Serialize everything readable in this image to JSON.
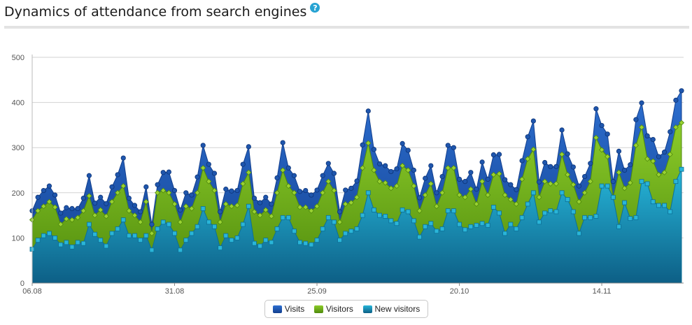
{
  "header": {
    "title": "Dynamics of attendance from search engines",
    "help_icon": "?"
  },
  "colors": {
    "visits": "#1f56ad",
    "visitors": "#6aa116",
    "new_visitors": "#1a9ec0"
  },
  "chart_data": {
    "type": "area",
    "title": "Dynamics of attendance from search engines",
    "ylim": [
      0,
      500
    ],
    "yticks": [
      0,
      100,
      200,
      300,
      400,
      500
    ],
    "xtick_labels": [
      {
        "index": 0,
        "label": "06.08"
      },
      {
        "index": 25,
        "label": "31.08"
      },
      {
        "index": 50,
        "label": "25.09"
      },
      {
        "index": 75,
        "label": "20.10"
      },
      {
        "index": 100,
        "label": "14.11"
      }
    ],
    "grid": true,
    "legend_position": "bottom-center",
    "series": [
      {
        "name": "Visits",
        "values": [
          160,
          190,
          205,
          215,
          195,
          155,
          167,
          165,
          165,
          188,
          238,
          177,
          190,
          176,
          213,
          240,
          277,
          188,
          172,
          158,
          213,
          130,
          218,
          245,
          246,
          205,
          162,
          200,
          195,
          235,
          305,
          263,
          243,
          158,
          208,
          204,
          205,
          263,
          302,
          188,
          178,
          190,
          175,
          233,
          311,
          255,
          238,
          203,
          205,
          195,
          206,
          238,
          265,
          243,
          158,
          206,
          210,
          226,
          306,
          381,
          296,
          264,
          260,
          247,
          253,
          309,
          294,
          250,
          189,
          232,
          260,
          200,
          236,
          305,
          300,
          230,
          225,
          245,
          208,
          268,
          230,
          284,
          285,
          229,
          218,
          207,
          271,
          324,
          359,
          224,
          267,
          258,
          258,
          339,
          286,
          257,
          215,
          236,
          265,
          386,
          349,
          330,
          225,
          292,
          250,
          262,
          362,
          399,
          326,
          318,
          280,
          290,
          335,
          405,
          426
        ]
      },
      {
        "name": "Visitors",
        "values": [
          140,
          160,
          170,
          180,
          168,
          130,
          142,
          140,
          145,
          160,
          193,
          150,
          162,
          148,
          180,
          200,
          215,
          160,
          150,
          135,
          180,
          110,
          200,
          205,
          200,
          175,
          135,
          170,
          165,
          200,
          255,
          225,
          205,
          135,
          175,
          170,
          172,
          220,
          245,
          158,
          150,
          162,
          148,
          200,
          250,
          215,
          200,
          168,
          168,
          160,
          170,
          200,
          225,
          205,
          135,
          175,
          178,
          190,
          255,
          310,
          250,
          225,
          222,
          210,
          215,
          260,
          250,
          215,
          160,
          195,
          220,
          170,
          200,
          255,
          255,
          195,
          190,
          208,
          175,
          225,
          195,
          240,
          242,
          195,
          185,
          175,
          230,
          275,
          296,
          190,
          225,
          220,
          220,
          285,
          240,
          218,
          180,
          200,
          225,
          322,
          295,
          280,
          190,
          245,
          210,
          222,
          305,
          345,
          275,
          270,
          240,
          245,
          285,
          345,
          355
        ]
      },
      {
        "name": "New visitors",
        "values": [
          75,
          95,
          105,
          110,
          100,
          85,
          90,
          80,
          90,
          88,
          130,
          108,
          95,
          82,
          110,
          120,
          140,
          105,
          105,
          95,
          105,
          73,
          120,
          135,
          130,
          110,
          73,
          95,
          110,
          125,
          165,
          135,
          125,
          78,
          105,
          95,
          100,
          130,
          170,
          88,
          82,
          95,
          90,
          120,
          145,
          145,
          115,
          90,
          88,
          85,
          95,
          120,
          145,
          135,
          95,
          110,
          115,
          120,
          150,
          200,
          162,
          150,
          148,
          138,
          132,
          162,
          158,
          138,
          102,
          125,
          132,
          115,
          120,
          160,
          160,
          130,
          118,
          125,
          128,
          132,
          128,
          168,
          155,
          110,
          130,
          120,
          145,
          175,
          200,
          135,
          155,
          160,
          158,
          200,
          185,
          158,
          110,
          145,
          145,
          148,
          215,
          215,
          190,
          125,
          178,
          143,
          145,
          225,
          220,
          180,
          172,
          172,
          158,
          225,
          252
        ]
      }
    ]
  },
  "legend": {
    "visits": "Visits",
    "visitors": "Visitors",
    "new_visitors": "New visitors"
  }
}
